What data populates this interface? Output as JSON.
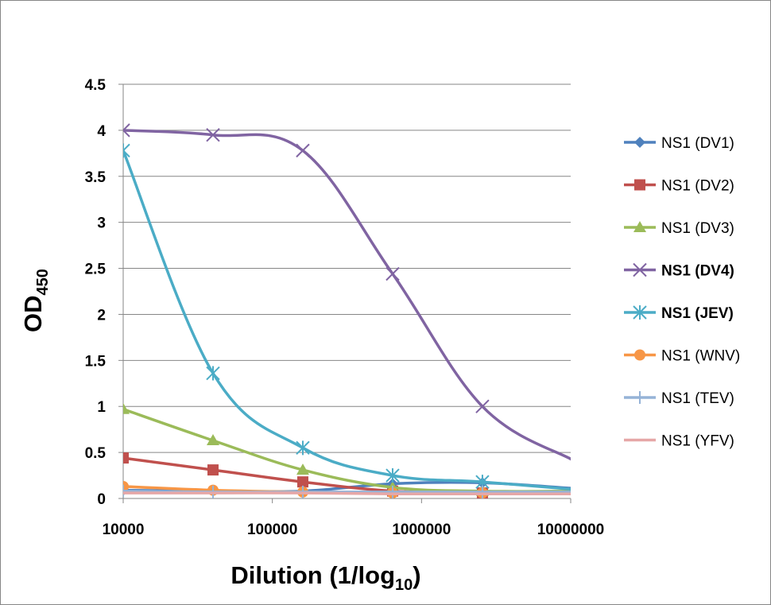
{
  "chart_data": {
    "type": "line",
    "x_scale": "log",
    "x_ticks": [
      "10000",
      "100000",
      "1000000",
      "10000000"
    ],
    "y_ticks": [
      "0",
      "0.5",
      "1",
      "1.5",
      "2",
      "2.5",
      "3",
      "3.5",
      "4",
      "4.5"
    ],
    "xlim": [
      10000,
      10000000
    ],
    "ylim": [
      0,
      4.5
    ],
    "grid": "horizontal",
    "legend_position": "right",
    "xlabel": {
      "main": "Dilution (1/log",
      "sub": "10",
      "tail": ")"
    },
    "ylabel": {
      "main": "OD",
      "sub": "450"
    },
    "series": [
      {
        "name": "NS1 (DV1)",
        "color": "#4f81bd",
        "marker": "diamond",
        "bold": false,
        "x": [
          10000,
          40000,
          160000,
          640000,
          2560000,
          10240000
        ],
        "y": [
          0.09,
          0.08,
          0.08,
          0.16,
          0.17,
          0.11
        ]
      },
      {
        "name": "NS1 (DV2)",
        "color": "#c0504d",
        "marker": "square",
        "bold": false,
        "x": [
          10000,
          40000,
          160000,
          640000,
          2560000,
          10240000
        ],
        "y": [
          0.44,
          0.31,
          0.18,
          0.08,
          0.06,
          0.06
        ]
      },
      {
        "name": "NS1 (DV3)",
        "color": "#9bbb59",
        "marker": "triangle",
        "bold": false,
        "x": [
          10000,
          40000,
          160000,
          640000,
          2560000,
          10240000
        ],
        "y": [
          0.97,
          0.63,
          0.31,
          0.12,
          0.08,
          0.08
        ]
      },
      {
        "name": "NS1 (DV4)",
        "color": "#8064a2",
        "marker": "x",
        "bold": true,
        "x": [
          10000,
          40000,
          160000,
          640000,
          2560000,
          10240000
        ],
        "y": [
          4.0,
          3.95,
          3.78,
          2.44,
          1.0,
          0.42
        ]
      },
      {
        "name": "NS1 (JEV)",
        "color": "#4bacc6",
        "marker": "star",
        "bold": true,
        "x": [
          10000,
          40000,
          160000,
          640000,
          2560000,
          10240000
        ],
        "y": [
          3.78,
          1.36,
          0.55,
          0.25,
          0.18,
          0.1
        ]
      },
      {
        "name": "NS1 (WNV)",
        "color": "#f79646",
        "marker": "circle",
        "bold": false,
        "x": [
          10000,
          40000,
          160000,
          640000,
          2560000,
          10240000
        ],
        "y": [
          0.13,
          0.09,
          0.07,
          0.06,
          0.06,
          0.06
        ]
      },
      {
        "name": "NS1 (TEV)",
        "color": "#95b3d7",
        "marker": "plus",
        "bold": false,
        "x": [
          10000,
          40000,
          160000,
          640000,
          2560000,
          10240000
        ],
        "y": [
          0.08,
          0.07,
          0.07,
          0.07,
          0.07,
          0.07
        ]
      },
      {
        "name": "NS1 (YFV)",
        "color": "#e6a7a7",
        "marker": "none",
        "bold": false,
        "x": [
          10000,
          40000,
          160000,
          640000,
          2560000,
          10240000
        ],
        "y": [
          0.06,
          0.06,
          0.06,
          0.05,
          0.05,
          0.05
        ]
      }
    ]
  }
}
